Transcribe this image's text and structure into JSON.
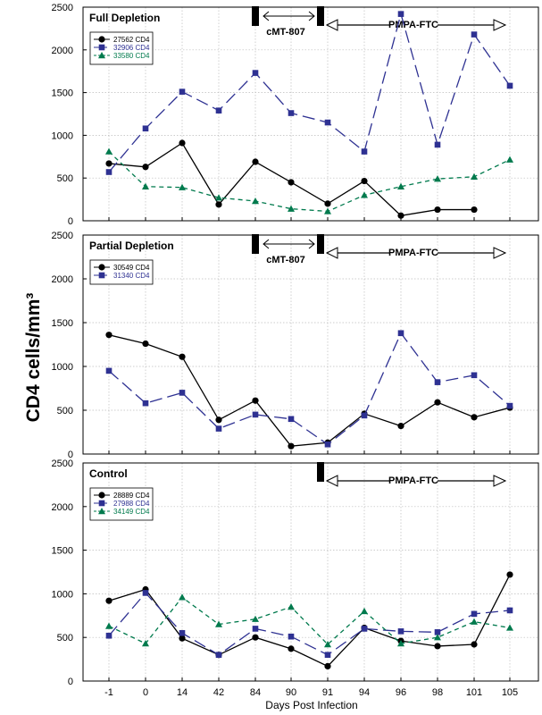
{
  "chart_data": [
    {
      "type": "line",
      "title": "Full Depletion",
      "xlabel": "Days Post Infection",
      "ylabel": "CD4 cells/mm³",
      "categories": [
        "-1",
        "0",
        "14",
        "42",
        "84",
        "90",
        "91",
        "94",
        "96",
        "98",
        "101",
        "105"
      ],
      "ylim": [
        0,
        2500
      ],
      "yticks": [
        "0",
        "500",
        "1000",
        "1500",
        "2000",
        "2500"
      ],
      "grid": true,
      "legend": "top-left",
      "annotations": {
        "drug1": "cMT-807",
        "drug2": "PMPA-FTC"
      },
      "series": [
        {
          "name": "27562 CD4",
          "color": "#000000",
          "marker": "circle",
          "dash": "solid",
          "values": [
            670,
            630,
            910,
            190,
            690,
            450,
            200,
            465,
            60,
            130,
            130,
            null
          ]
        },
        {
          "name": "32906 CD4",
          "color": "#2e3192",
          "marker": "square",
          "dash": "long",
          "values": [
            570,
            1080,
            1510,
            1290,
            1730,
            1260,
            1150,
            810,
            2420,
            890,
            2180,
            1580
          ]
        },
        {
          "name": "33580 CD4",
          "color": "#007a4d",
          "marker": "triangle",
          "dash": "short",
          "values": [
            810,
            400,
            390,
            270,
            230,
            140,
            110,
            300,
            400,
            490,
            515,
            715
          ]
        }
      ]
    },
    {
      "type": "line",
      "title": "Partial Depletion",
      "xlabel": "Days Post Infection",
      "ylabel": "CD4 cells/mm³",
      "categories": [
        "-1",
        "0",
        "14",
        "42",
        "84",
        "90",
        "91",
        "94",
        "96",
        "98",
        "101",
        "105"
      ],
      "ylim": [
        0,
        2500
      ],
      "yticks": [
        "0",
        "500",
        "1000",
        "1500",
        "2000",
        "2500"
      ],
      "grid": true,
      "legend": "top-left",
      "annotations": {
        "drug1": "cMT-807",
        "drug2": "PMPA-FTC"
      },
      "series": [
        {
          "name": "30549 CD4",
          "color": "#000000",
          "marker": "circle",
          "dash": "solid",
          "values": [
            1360,
            1260,
            1110,
            390,
            610,
            90,
            130,
            460,
            320,
            590,
            420,
            530
          ]
        },
        {
          "name": "31340 CD4",
          "color": "#2e3192",
          "marker": "square",
          "dash": "long",
          "values": [
            950,
            580,
            700,
            290,
            450,
            400,
            110,
            440,
            1380,
            820,
            900,
            550
          ]
        }
      ]
    },
    {
      "type": "line",
      "title": "Control",
      "xlabel": "Days Post Infection",
      "ylabel": "CD4 cells/mm³",
      "categories": [
        "-1",
        "0",
        "14",
        "42",
        "84",
        "90",
        "91",
        "94",
        "96",
        "98",
        "101",
        "105"
      ],
      "ylim": [
        0,
        2500
      ],
      "yticks": [
        "0",
        "500",
        "1000",
        "1500",
        "2000",
        "2500"
      ],
      "grid": true,
      "legend": "top-left",
      "annotations": {
        "drug1": "",
        "drug2": "PMPA-FTC"
      },
      "series": [
        {
          "name": "28889 CD4",
          "color": "#000000",
          "marker": "circle",
          "dash": "solid",
          "values": [
            920,
            1050,
            490,
            300,
            500,
            370,
            170,
            610,
            460,
            400,
            420,
            1220
          ]
        },
        {
          "name": "27988 CD4",
          "color": "#2e3192",
          "marker": "square",
          "dash": "long",
          "values": [
            520,
            1010,
            550,
            300,
            600,
            510,
            300,
            600,
            570,
            560,
            770,
            810
          ]
        },
        {
          "name": "34149 CD4",
          "color": "#007a4d",
          "marker": "triangle",
          "dash": "short",
          "values": [
            630,
            430,
            960,
            650,
            710,
            850,
            420,
            800,
            430,
            500,
            680,
            610
          ]
        }
      ]
    }
  ],
  "figure": {
    "ylabel": "CD4 cells/mm³",
    "xlabel": "Days Post Infection"
  }
}
